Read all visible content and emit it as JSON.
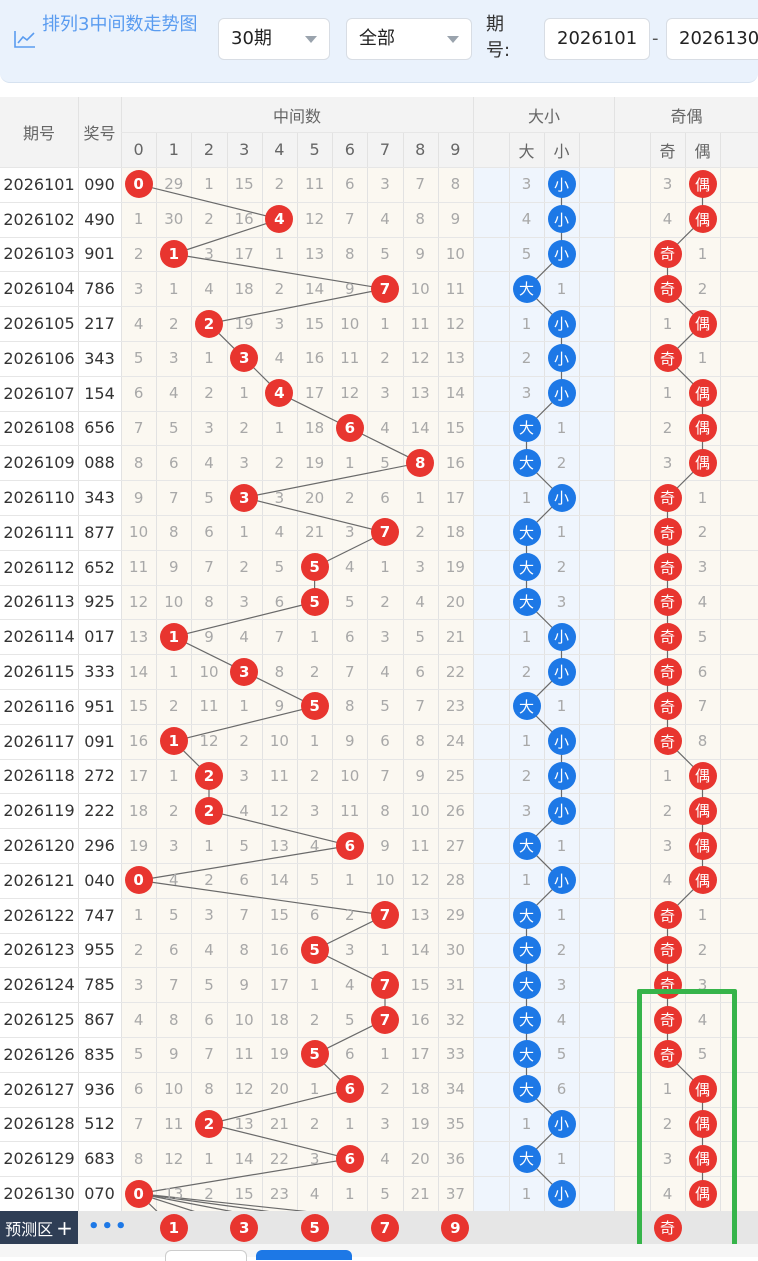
{
  "header": {
    "title": "排列3中间数走势图",
    "period_select": "30期",
    "filter_select": "全部",
    "issue_label": "期号:",
    "issue_from": "2026101",
    "issue_to": "2026130"
  },
  "table": {
    "col_issue": "期号",
    "col_award": "奖号",
    "group_mid": "中间数",
    "group_size": "大小",
    "group_parity": "奇偶",
    "digits": [
      "0",
      "1",
      "2",
      "3",
      "4",
      "5",
      "6",
      "7",
      "8",
      "9"
    ],
    "size_labels": [
      "大",
      "小"
    ],
    "parity_labels": [
      "奇",
      "偶"
    ],
    "rows": [
      {
        "issue": "2026101",
        "award": "090",
        "mid": [
          "0",
          "29",
          "1",
          "15",
          "2",
          "11",
          "6",
          "3",
          "7",
          "8"
        ],
        "hit": 0,
        "size": [
          "3",
          "小"
        ],
        "size_hit": 1,
        "parity": [
          "3",
          "偶"
        ],
        "parity_hit": 1
      },
      {
        "issue": "2026102",
        "award": "490",
        "mid": [
          "1",
          "30",
          "2",
          "16",
          "4",
          "12",
          "7",
          "4",
          "8",
          "9"
        ],
        "hit": 4,
        "size": [
          "4",
          "小"
        ],
        "size_hit": 1,
        "parity": [
          "4",
          "偶"
        ],
        "parity_hit": 1
      },
      {
        "issue": "2026103",
        "award": "901",
        "mid": [
          "2",
          "1",
          "3",
          "17",
          "1",
          "13",
          "8",
          "5",
          "9",
          "10"
        ],
        "hit": 1,
        "size": [
          "5",
          "小"
        ],
        "size_hit": 1,
        "parity": [
          "奇",
          "1"
        ],
        "parity_hit": 0
      },
      {
        "issue": "2026104",
        "award": "786",
        "mid": [
          "3",
          "1",
          "4",
          "18",
          "2",
          "14",
          "9",
          "7",
          "10",
          "11"
        ],
        "hit": 7,
        "size": [
          "大",
          "1"
        ],
        "size_hit": 0,
        "parity": [
          "奇",
          "2"
        ],
        "parity_hit": 0
      },
      {
        "issue": "2026105",
        "award": "217",
        "mid": [
          "4",
          "2",
          "2",
          "19",
          "3",
          "15",
          "10",
          "1",
          "11",
          "12"
        ],
        "hit": 2,
        "size": [
          "1",
          "小"
        ],
        "size_hit": 1,
        "parity": [
          "1",
          "偶"
        ],
        "parity_hit": 1
      },
      {
        "issue": "2026106",
        "award": "343",
        "mid": [
          "5",
          "3",
          "1",
          "3",
          "4",
          "16",
          "11",
          "2",
          "12",
          "13"
        ],
        "hit": 3,
        "size": [
          "2",
          "小"
        ],
        "size_hit": 1,
        "parity": [
          "奇",
          "1"
        ],
        "parity_hit": 0
      },
      {
        "issue": "2026107",
        "award": "154",
        "mid": [
          "6",
          "4",
          "2",
          "1",
          "4",
          "17",
          "12",
          "3",
          "13",
          "14"
        ],
        "hit": 4,
        "size": [
          "3",
          "小"
        ],
        "size_hit": 1,
        "parity": [
          "1",
          "偶"
        ],
        "parity_hit": 1
      },
      {
        "issue": "2026108",
        "award": "656",
        "mid": [
          "7",
          "5",
          "3",
          "2",
          "1",
          "18",
          "6",
          "4",
          "14",
          "15"
        ],
        "hit": 6,
        "size": [
          "大",
          "1"
        ],
        "size_hit": 0,
        "parity": [
          "2",
          "偶"
        ],
        "parity_hit": 1
      },
      {
        "issue": "2026109",
        "award": "088",
        "mid": [
          "8",
          "6",
          "4",
          "3",
          "2",
          "19",
          "1",
          "5",
          "8",
          "16"
        ],
        "hit": 8,
        "size": [
          "大",
          "2"
        ],
        "size_hit": 0,
        "parity": [
          "3",
          "偶"
        ],
        "parity_hit": 1
      },
      {
        "issue": "2026110",
        "award": "343",
        "mid": [
          "9",
          "7",
          "5",
          "3",
          "3",
          "20",
          "2",
          "6",
          "1",
          "17"
        ],
        "hit": 3,
        "size": [
          "1",
          "小"
        ],
        "size_hit": 1,
        "parity": [
          "奇",
          "1"
        ],
        "parity_hit": 0
      },
      {
        "issue": "2026111",
        "award": "877",
        "mid": [
          "10",
          "8",
          "6",
          "1",
          "4",
          "21",
          "3",
          "7",
          "2",
          "18"
        ],
        "hit": 7,
        "size": [
          "大",
          "1"
        ],
        "size_hit": 0,
        "parity": [
          "奇",
          "2"
        ],
        "parity_hit": 0
      },
      {
        "issue": "2026112",
        "award": "652",
        "mid": [
          "11",
          "9",
          "7",
          "2",
          "5",
          "5",
          "4",
          "1",
          "3",
          "19"
        ],
        "hit": 5,
        "size": [
          "大",
          "2"
        ],
        "size_hit": 0,
        "parity": [
          "奇",
          "3"
        ],
        "parity_hit": 0
      },
      {
        "issue": "2026113",
        "award": "925",
        "mid": [
          "12",
          "10",
          "8",
          "3",
          "6",
          "5",
          "5",
          "2",
          "4",
          "20"
        ],
        "hit": 5,
        "size": [
          "大",
          "3"
        ],
        "size_hit": 0,
        "parity": [
          "奇",
          "4"
        ],
        "parity_hit": 0
      },
      {
        "issue": "2026114",
        "award": "017",
        "mid": [
          "13",
          "1",
          "9",
          "4",
          "7",
          "1",
          "6",
          "3",
          "5",
          "21"
        ],
        "hit": 1,
        "size": [
          "1",
          "小"
        ],
        "size_hit": 1,
        "parity": [
          "奇",
          "5"
        ],
        "parity_hit": 0
      },
      {
        "issue": "2026115",
        "award": "333",
        "mid": [
          "14",
          "1",
          "10",
          "3",
          "8",
          "2",
          "7",
          "4",
          "6",
          "22"
        ],
        "hit": 3,
        "size": [
          "2",
          "小"
        ],
        "size_hit": 1,
        "parity": [
          "奇",
          "6"
        ],
        "parity_hit": 0
      },
      {
        "issue": "2026116",
        "award": "951",
        "mid": [
          "15",
          "2",
          "11",
          "1",
          "9",
          "5",
          "8",
          "5",
          "7",
          "23"
        ],
        "hit": 5,
        "size": [
          "大",
          "1"
        ],
        "size_hit": 0,
        "parity": [
          "奇",
          "7"
        ],
        "parity_hit": 0
      },
      {
        "issue": "2026117",
        "award": "091",
        "mid": [
          "16",
          "1",
          "12",
          "2",
          "10",
          "1",
          "9",
          "6",
          "8",
          "24"
        ],
        "hit": 1,
        "size": [
          "1",
          "小"
        ],
        "size_hit": 1,
        "parity": [
          "奇",
          "8"
        ],
        "parity_hit": 0
      },
      {
        "issue": "2026118",
        "award": "272",
        "mid": [
          "17",
          "1",
          "2",
          "3",
          "11",
          "2",
          "10",
          "7",
          "9",
          "25"
        ],
        "hit": 2,
        "size": [
          "2",
          "小"
        ],
        "size_hit": 1,
        "parity": [
          "1",
          "偶"
        ],
        "parity_hit": 1
      },
      {
        "issue": "2026119",
        "award": "222",
        "mid": [
          "18",
          "2",
          "2",
          "4",
          "12",
          "3",
          "11",
          "8",
          "10",
          "26"
        ],
        "hit": 2,
        "size": [
          "3",
          "小"
        ],
        "size_hit": 1,
        "parity": [
          "2",
          "偶"
        ],
        "parity_hit": 1
      },
      {
        "issue": "2026120",
        "award": "296",
        "mid": [
          "19",
          "3",
          "1",
          "5",
          "13",
          "4",
          "6",
          "9",
          "11",
          "27"
        ],
        "hit": 6,
        "size": [
          "大",
          "1"
        ],
        "size_hit": 0,
        "parity": [
          "3",
          "偶"
        ],
        "parity_hit": 1
      },
      {
        "issue": "2026121",
        "award": "040",
        "mid": [
          "0",
          "4",
          "2",
          "6",
          "14",
          "5",
          "1",
          "10",
          "12",
          "28"
        ],
        "hit": 0,
        "size": [
          "1",
          "小"
        ],
        "size_hit": 1,
        "parity": [
          "4",
          "偶"
        ],
        "parity_hit": 1
      },
      {
        "issue": "2026122",
        "award": "747",
        "mid": [
          "1",
          "5",
          "3",
          "7",
          "15",
          "6",
          "2",
          "7",
          "13",
          "29"
        ],
        "hit": 7,
        "size": [
          "大",
          "1"
        ],
        "size_hit": 0,
        "parity": [
          "奇",
          "1"
        ],
        "parity_hit": 0
      },
      {
        "issue": "2026123",
        "award": "955",
        "mid": [
          "2",
          "6",
          "4",
          "8",
          "16",
          "5",
          "3",
          "1",
          "14",
          "30"
        ],
        "hit": 5,
        "size": [
          "大",
          "2"
        ],
        "size_hit": 0,
        "parity": [
          "奇",
          "2"
        ],
        "parity_hit": 0
      },
      {
        "issue": "2026124",
        "award": "785",
        "mid": [
          "3",
          "7",
          "5",
          "9",
          "17",
          "1",
          "4",
          "7",
          "15",
          "31"
        ],
        "hit": 7,
        "size": [
          "大",
          "3"
        ],
        "size_hit": 0,
        "parity": [
          "奇",
          "3"
        ],
        "parity_hit": 0
      },
      {
        "issue": "2026125",
        "award": "867",
        "mid": [
          "4",
          "8",
          "6",
          "10",
          "18",
          "2",
          "5",
          "7",
          "16",
          "32"
        ],
        "hit": 7,
        "size": [
          "大",
          "4"
        ],
        "size_hit": 0,
        "parity": [
          "奇",
          "4"
        ],
        "parity_hit": 0
      },
      {
        "issue": "2026126",
        "award": "835",
        "mid": [
          "5",
          "9",
          "7",
          "11",
          "19",
          "5",
          "6",
          "1",
          "17",
          "33"
        ],
        "hit": 5,
        "size": [
          "大",
          "5"
        ],
        "size_hit": 0,
        "parity": [
          "奇",
          "5"
        ],
        "parity_hit": 0
      },
      {
        "issue": "2026127",
        "award": "936",
        "mid": [
          "6",
          "10",
          "8",
          "12",
          "20",
          "1",
          "6",
          "2",
          "18",
          "34"
        ],
        "hit": 6,
        "size": [
          "大",
          "6"
        ],
        "size_hit": 0,
        "parity": [
          "1",
          "偶"
        ],
        "parity_hit": 1
      },
      {
        "issue": "2026128",
        "award": "512",
        "mid": [
          "7",
          "11",
          "2",
          "13",
          "21",
          "2",
          "1",
          "3",
          "19",
          "35"
        ],
        "hit": 2,
        "size": [
          "1",
          "小"
        ],
        "size_hit": 1,
        "parity": [
          "2",
          "偶"
        ],
        "parity_hit": 1
      },
      {
        "issue": "2026129",
        "award": "683",
        "mid": [
          "8",
          "12",
          "1",
          "14",
          "22",
          "3",
          "6",
          "4",
          "20",
          "36"
        ],
        "hit": 6,
        "size": [
          "大",
          "1"
        ],
        "size_hit": 0,
        "parity": [
          "3",
          "偶"
        ],
        "parity_hit": 1
      },
      {
        "issue": "2026130",
        "award": "070",
        "mid": [
          "0",
          "13",
          "2",
          "15",
          "23",
          "4",
          "1",
          "5",
          "21",
          "37"
        ],
        "hit": 0,
        "size": [
          "1",
          "小"
        ],
        "size_hit": 1,
        "parity": [
          "4",
          "偶"
        ],
        "parity_hit": 1
      }
    ],
    "prediction": {
      "label": "预测区",
      "plus": "+",
      "more": "•••",
      "balls": [
        "1",
        "3",
        "5",
        "7",
        "9"
      ],
      "ball_columns": [
        1,
        3,
        5,
        7,
        9
      ],
      "parity_ball": "奇"
    }
  },
  "colors": {
    "accent": "#5a9cf0",
    "red_ball": "#e8352f",
    "blue_ball": "#1d78e6",
    "highlight_box": "#36b44a"
  }
}
